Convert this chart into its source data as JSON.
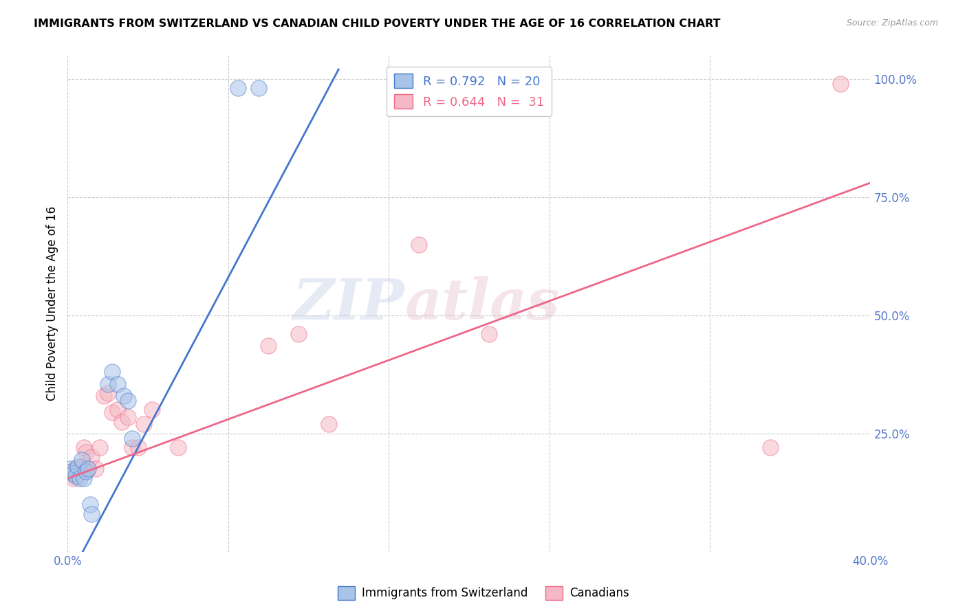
{
  "title": "IMMIGRANTS FROM SWITZERLAND VS CANADIAN CHILD POVERTY UNDER THE AGE OF 16 CORRELATION CHART",
  "source": "Source: ZipAtlas.com",
  "ylabel": "Child Poverty Under the Age of 16",
  "legend_label1": "Immigrants from Switzerland",
  "legend_label2": "Canadians",
  "r1": "0.792",
  "n1": "20",
  "r2": "0.644",
  "n2": "31",
  "color_blue": "#A8C4E8",
  "color_pink": "#F5B8C4",
  "color_blue_line": "#4477CC",
  "color_pink_line": "#EE6688",
  "color_axis_labels": "#5577CC",
  "watermark_zip": "ZIP",
  "watermark_atlas": "atlas",
  "swiss_x": [
    0.001,
    0.002,
    0.003,
    0.004,
    0.005,
    0.006,
    0.007,
    0.008,
    0.009,
    0.01,
    0.011,
    0.012,
    0.02,
    0.022,
    0.025,
    0.028,
    0.03,
    0.032,
    0.085,
    0.095
  ],
  "swiss_y": [
    0.175,
    0.17,
    0.165,
    0.16,
    0.18,
    0.155,
    0.195,
    0.155,
    0.17,
    0.175,
    0.1,
    0.08,
    0.355,
    0.38,
    0.355,
    0.33,
    0.32,
    0.24,
    0.98,
    0.98
  ],
  "canadian_x": [
    0.001,
    0.002,
    0.003,
    0.004,
    0.005,
    0.006,
    0.007,
    0.008,
    0.009,
    0.01,
    0.012,
    0.014,
    0.016,
    0.018,
    0.02,
    0.022,
    0.025,
    0.027,
    0.03,
    0.032,
    0.035,
    0.038,
    0.042,
    0.055,
    0.1,
    0.115,
    0.13,
    0.175,
    0.21,
    0.35,
    0.385
  ],
  "canadian_y": [
    0.165,
    0.17,
    0.155,
    0.175,
    0.16,
    0.175,
    0.18,
    0.22,
    0.21,
    0.175,
    0.2,
    0.175,
    0.22,
    0.33,
    0.335,
    0.295,
    0.3,
    0.275,
    0.285,
    0.22,
    0.22,
    0.27,
    0.3,
    0.22,
    0.435,
    0.46,
    0.27,
    0.65,
    0.46,
    0.22,
    0.99
  ],
  "blue_line_x": [
    0.0,
    0.135
  ],
  "blue_line_y": [
    -0.06,
    1.02
  ],
  "pink_line_x": [
    0.0,
    0.4
  ],
  "pink_line_y": [
    0.155,
    0.78
  ],
  "xmin": 0.0,
  "xmax": 0.4,
  "ymin": 0.0,
  "ymax": 1.05,
  "yticks": [
    0.25,
    0.5,
    0.75,
    1.0
  ],
  "ytick_labels": [
    "25.0%",
    "50.0%",
    "75.0%",
    "100.0%"
  ],
  "xticks": [
    0.0,
    0.08,
    0.16,
    0.24,
    0.32,
    0.4
  ],
  "xtick_labels": [
    "0.0%",
    "",
    "",
    "",
    "",
    "40.0%"
  ]
}
